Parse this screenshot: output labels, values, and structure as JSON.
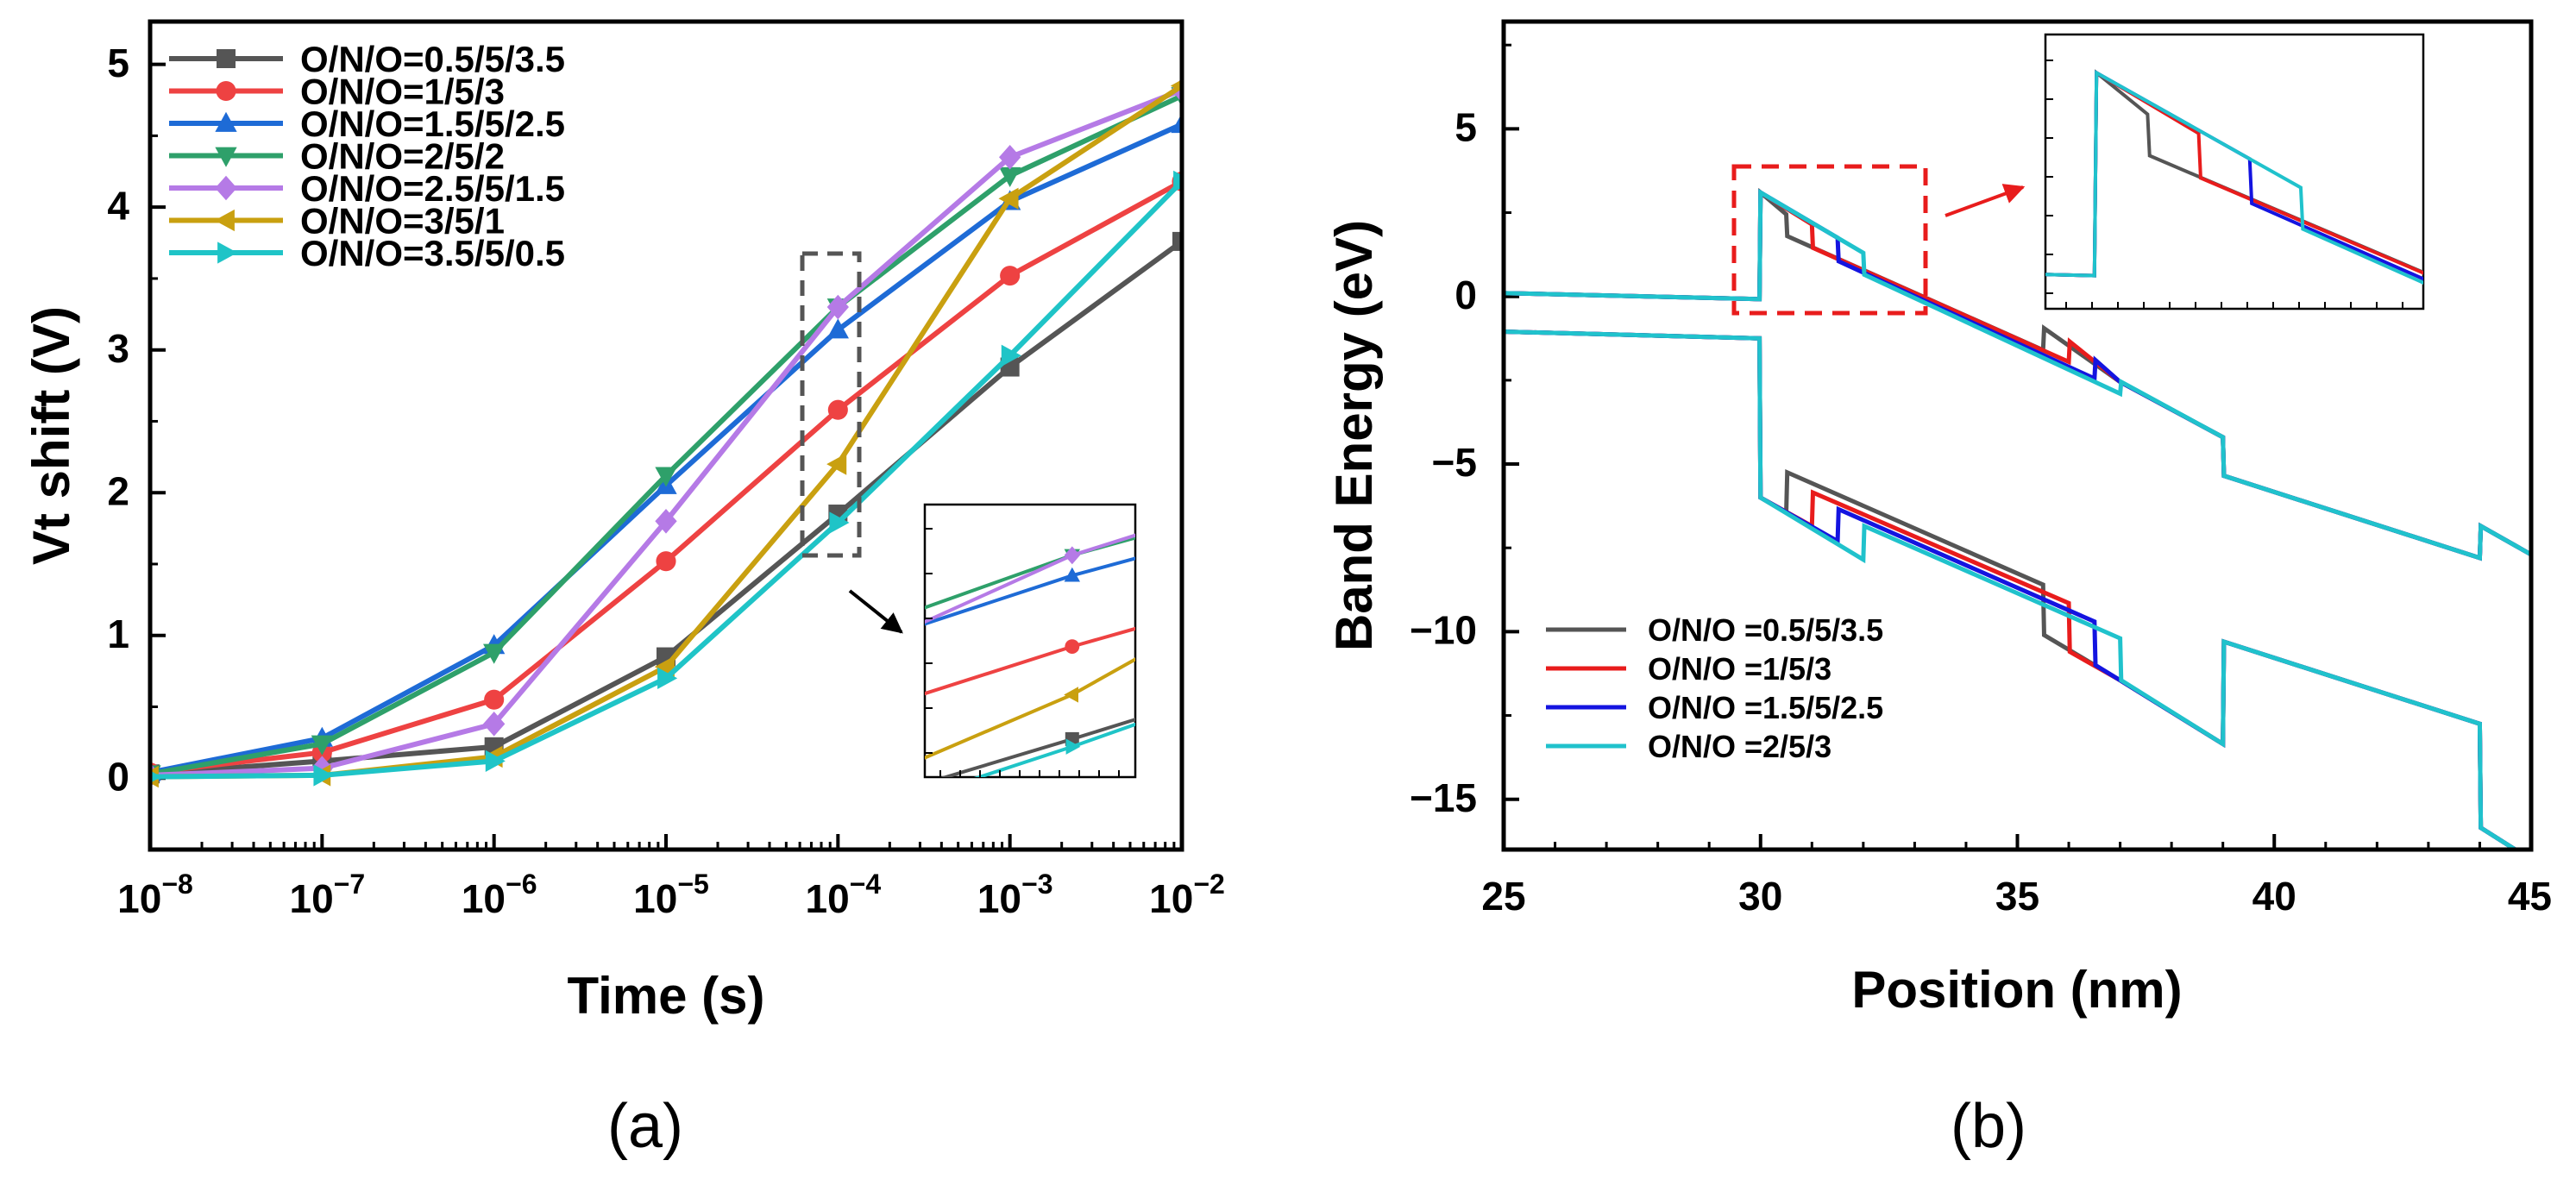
{
  "chart_data": [
    {
      "type": "line",
      "panel_label": "(a)",
      "xlabel": "Time (s)",
      "ylabel": "Vt shift (V)",
      "xscale": "log",
      "xlim_exp": [
        -8,
        -2
      ],
      "ylim": [
        -0.5,
        5.3
      ],
      "x_tick_labels": [
        {
          "base": "10",
          "exp": "−8"
        },
        {
          "base": "10",
          "exp": "−7"
        },
        {
          "base": "10",
          "exp": "−6"
        },
        {
          "base": "10",
          "exp": "−5"
        },
        {
          "base": "10",
          "exp": "−4"
        },
        {
          "base": "10",
          "exp": "−3"
        },
        {
          "base": "10",
          "exp": "−2"
        }
      ],
      "y_tick_labels": [
        "0",
        "1",
        "2",
        "3",
        "4",
        "5"
      ],
      "x_exp": [
        -8,
        -7,
        -6,
        -5,
        -4,
        -3,
        -2
      ],
      "legend_position": "top-left",
      "series": [
        {
          "name": "O/N/O=0.5/5/3.5",
          "color": "#555555",
          "marker": "square",
          "values": [
            0.03,
            0.12,
            0.22,
            0.85,
            1.85,
            2.88,
            3.76
          ]
        },
        {
          "name": "O/N/O=1/5/3",
          "color": "#ee4242",
          "marker": "circle",
          "values": [
            0.04,
            0.18,
            0.55,
            1.52,
            2.58,
            3.52,
            4.18
          ]
        },
        {
          "name": "O/N/O=1.5/5/2.5",
          "color": "#1e6bd6",
          "marker": "triangle-up",
          "values": [
            0.04,
            0.28,
            0.93,
            2.05,
            3.14,
            4.04,
            4.58
          ]
        },
        {
          "name": "O/N/O=2/5/2",
          "color": "#2ea06a",
          "marker": "triangle-down",
          "values": [
            0.03,
            0.24,
            0.88,
            2.12,
            3.3,
            4.22,
            4.78
          ]
        },
        {
          "name": "O/N/O=2.5/5/1.5",
          "color": "#b57ae6",
          "marker": "diamond",
          "values": [
            0.02,
            0.07,
            0.38,
            1.8,
            3.3,
            4.35,
            4.82
          ]
        },
        {
          "name": "O/N/O=3/5/1",
          "color": "#c9a010",
          "marker": "triangle-left",
          "values": [
            0.01,
            0.02,
            0.15,
            0.78,
            2.2,
            4.06,
            4.85
          ]
        },
        {
          "name": "O/N/O=3.5/5/0.5",
          "color": "#1fc4c7",
          "marker": "triangle-right",
          "values": [
            0.01,
            0.02,
            0.12,
            0.7,
            1.79,
            2.96,
            4.18
          ]
        }
      ],
      "inset": {
        "x_exp_range": [
          -4.35,
          -3.85
        ],
        "y_range": [
          1.55,
          3.7
        ]
      }
    },
    {
      "type": "line",
      "panel_label": "(b)",
      "xlabel": "Position (nm)",
      "ylabel": "Band Energy (eV)",
      "xlim": [
        25,
        45
      ],
      "ylim": [
        -16.5,
        8.2
      ],
      "x_tick_labels": [
        "25",
        "30",
        "35",
        "40",
        "45"
      ],
      "y_tick_labels": [
        "−15",
        "−10",
        "−5",
        "0",
        "5"
      ],
      "legend_position": "bottom-left",
      "series": [
        {
          "name": "O/N/O =0.5/5/3.5",
          "color": "#555555",
          "conduction_band": [
            [
              25,
              0.1
            ],
            [
              29.98,
              -0.08
            ],
            [
              30,
              3.1
            ],
            [
              30.5,
              2.45
            ],
            [
              30.52,
              1.8
            ],
            [
              35.5,
              -1.6
            ],
            [
              35.52,
              -0.95
            ],
            [
              37,
              -2.55
            ],
            [
              39,
              -4.2
            ],
            [
              39.02,
              -5.35
            ],
            [
              44,
              -7.8
            ],
            [
              44.02,
              -6.85
            ],
            [
              45,
              -7.7
            ]
          ],
          "valence_band": [
            [
              25,
              -1.05
            ],
            [
              29.98,
              -1.25
            ],
            [
              30,
              -6.0
            ],
            [
              30.5,
              -6.45
            ],
            [
              30.52,
              -5.25
            ],
            [
              35.5,
              -8.6
            ],
            [
              35.52,
              -10.1
            ],
            [
              37,
              -11.45
            ],
            [
              39,
              -13.35
            ],
            [
              39.02,
              -10.3
            ],
            [
              44,
              -12.75
            ],
            [
              44.02,
              -15.85
            ],
            [
              45,
              -16.8
            ]
          ]
        },
        {
          "name": "O/N/O =1/5/3",
          "color": "#e81c1c",
          "conduction_band": [
            [
              25,
              0.1
            ],
            [
              29.98,
              -0.08
            ],
            [
              30,
              3.1
            ],
            [
              31,
              2.15
            ],
            [
              31.02,
              1.45
            ],
            [
              36,
              -1.95
            ],
            [
              36.02,
              -1.35
            ],
            [
              37,
              -2.55
            ],
            [
              39,
              -4.2
            ],
            [
              39.02,
              -5.35
            ],
            [
              44,
              -7.8
            ],
            [
              44.02,
              -6.85
            ],
            [
              45,
              -7.7
            ]
          ],
          "valence_band": [
            [
              25,
              -1.05
            ],
            [
              29.98,
              -1.25
            ],
            [
              30,
              -6.0
            ],
            [
              31,
              -6.85
            ],
            [
              31.02,
              -5.85
            ],
            [
              36,
              -9.15
            ],
            [
              36.02,
              -10.6
            ],
            [
              37,
              -11.45
            ],
            [
              39,
              -13.35
            ],
            [
              39.02,
              -10.3
            ],
            [
              44,
              -12.75
            ],
            [
              44.02,
              -15.85
            ],
            [
              45,
              -16.8
            ]
          ]
        },
        {
          "name": "O/N/O =1.5/5/2.5",
          "color": "#1414e0",
          "conduction_band": [
            [
              25,
              0.1
            ],
            [
              29.98,
              -0.08
            ],
            [
              30,
              3.1
            ],
            [
              31.5,
              1.75
            ],
            [
              31.52,
              1.05
            ],
            [
              36.5,
              -2.45
            ],
            [
              36.52,
              -1.9
            ],
            [
              37,
              -2.55
            ],
            [
              39,
              -4.2
            ],
            [
              39.02,
              -5.35
            ],
            [
              44,
              -7.8
            ],
            [
              44.02,
              -6.85
            ],
            [
              45,
              -7.7
            ]
          ],
          "valence_band": [
            [
              25,
              -1.05
            ],
            [
              29.98,
              -1.25
            ],
            [
              30,
              -6.0
            ],
            [
              31.5,
              -7.3
            ],
            [
              31.52,
              -6.35
            ],
            [
              36.5,
              -9.7
            ],
            [
              36.52,
              -11.0
            ],
            [
              37,
              -11.45
            ],
            [
              39,
              -13.35
            ],
            [
              39.02,
              -10.3
            ],
            [
              44,
              -12.75
            ],
            [
              44.02,
              -15.85
            ],
            [
              45,
              -16.8
            ]
          ]
        },
        {
          "name": "O/N/O =2/5/3",
          "color": "#20c2cc",
          "conduction_band": [
            [
              25,
              0.1
            ],
            [
              29.98,
              -0.08
            ],
            [
              30,
              3.1
            ],
            [
              32,
              1.3
            ],
            [
              32.02,
              0.65
            ],
            [
              37,
              -2.9
            ],
            [
              37.02,
              -2.55
            ],
            [
              39,
              -4.2
            ],
            [
              39.02,
              -5.35
            ],
            [
              44,
              -7.8
            ],
            [
              44.02,
              -6.85
            ],
            [
              45,
              -7.7
            ]
          ],
          "valence_band": [
            [
              25,
              -1.05
            ],
            [
              29.98,
              -1.25
            ],
            [
              30,
              -6.0
            ],
            [
              32,
              -7.85
            ],
            [
              32.02,
              -6.85
            ],
            [
              37,
              -10.2
            ],
            [
              37.02,
              -11.45
            ],
            [
              39,
              -13.35
            ],
            [
              39.02,
              -10.3
            ],
            [
              44,
              -12.75
            ],
            [
              44.02,
              -15.85
            ],
            [
              45,
              -16.8
            ]
          ]
        }
      ],
      "inset": {
        "x_range": [
          29.5,
          33.2
        ],
        "y_range": [
          -0.6,
          3.7
        ]
      }
    }
  ]
}
